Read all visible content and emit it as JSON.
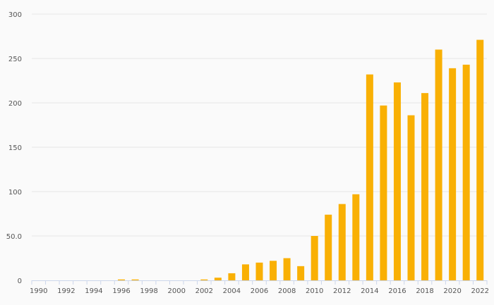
{
  "chart_data": {
    "type": "bar",
    "categories": [
      "1990",
      "1991",
      "1992",
      "1993",
      "1994",
      "1995",
      "1996",
      "1997",
      "1998",
      "1999",
      "2000",
      "2001",
      "2002",
      "2003",
      "2004",
      "2005",
      "2006",
      "2007",
      "2008",
      "2009",
      "2010",
      "2011",
      "2012",
      "2013",
      "2014",
      "2015",
      "2016",
      "2017",
      "2018",
      "2019",
      "2020",
      "2021",
      "2022"
    ],
    "values": [
      0,
      0,
      0,
      0,
      0,
      0,
      1,
      1,
      0,
      0,
      0,
      0,
      1,
      3,
      8,
      18,
      20,
      22,
      25,
      16,
      50,
      74,
      86,
      97,
      232,
      197,
      223,
      186,
      211,
      260,
      239,
      243,
      271
    ],
    "x_tick_labels": [
      "1990",
      "1992",
      "1994",
      "1996",
      "1998",
      "2000",
      "2002",
      "2004",
      "2006",
      "2008",
      "2010",
      "2012",
      "2014",
      "2016",
      "2018",
      "2020",
      "2022"
    ],
    "y_ticks": [
      0,
      50,
      100,
      150,
      200,
      250,
      300
    ],
    "y_tick_labels": [
      "0",
      "50.0",
      "100",
      "150",
      "200",
      "250",
      "300"
    ],
    "ylim": [
      0,
      300
    ],
    "title": "",
    "xlabel": "",
    "ylabel": "",
    "grid": true,
    "legend": false,
    "colors": {
      "bar": "#f9b004",
      "grid": "#e6e6e6",
      "axis": "#ccd6eb",
      "text": "#555555",
      "background": "#fafafa"
    }
  }
}
